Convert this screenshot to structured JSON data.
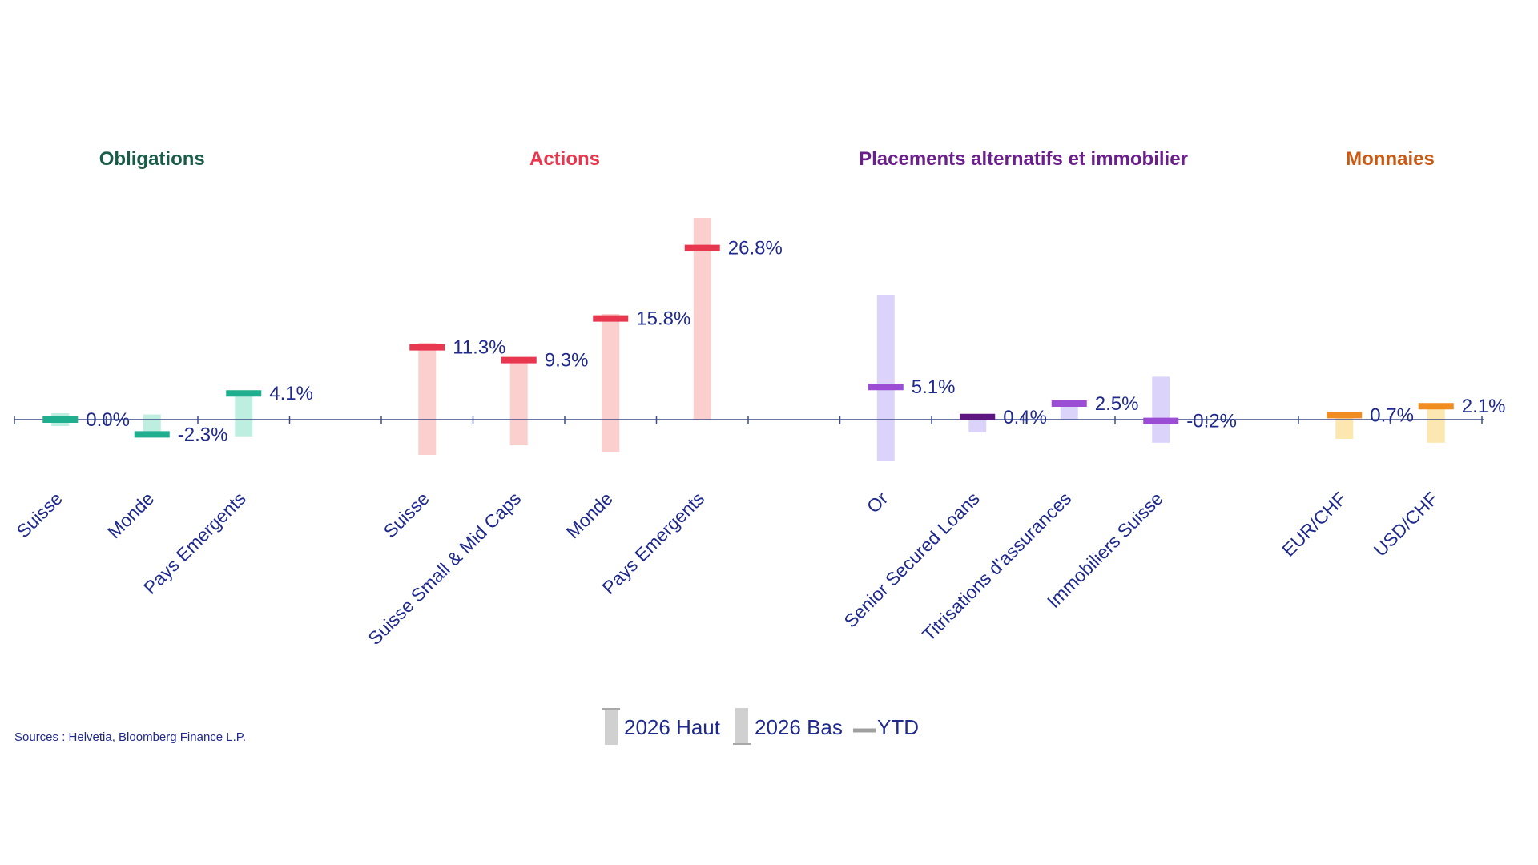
{
  "source": "Sources : Helvetia, Bloomberg Finance L.P.",
  "legend": [
    {
      "label": "2026 Haut",
      "icon": "high-range-bar"
    },
    {
      "label": "2026 Bas",
      "icon": "low-range-bar"
    },
    {
      "label": "YTD",
      "icon": "ytd-dash"
    }
  ],
  "chart_data": {
    "type": "bar",
    "title": "",
    "xlabel": "",
    "ylabel": "",
    "grid": false,
    "legend_position": "bottom",
    "ylim": [
      -10,
      32
    ],
    "groups": [
      {
        "name": "Obligations",
        "color": "#1a5c4a",
        "items": [
          {
            "category": "Suisse",
            "ytd": 0.0,
            "label": "0.0%",
            "high": 1.0,
            "low": -1.0,
            "ytd_color": "#1fae8e",
            "range_color": "#bdeee0"
          },
          {
            "category": "Monde",
            "ytd": -2.3,
            "label": "-2.3%",
            "high": 0.8,
            "low": -2.3,
            "ytd_color": "#1fae8e",
            "range_color": "#bdeee0"
          },
          {
            "category": "Pays Emergents",
            "ytd": 4.1,
            "label": "4.1%",
            "high": 4.1,
            "low": -2.6,
            "ytd_color": "#1fae8e",
            "range_color": "#bdeee0"
          }
        ]
      },
      {
        "name": "Actions",
        "color": "#e8384f",
        "items": [
          {
            "category": "Suisse",
            "ytd": 11.3,
            "label": "11.3%",
            "high": 12.0,
            "low": -5.5,
            "ytd_color": "#e8384f",
            "range_color": "#fccfcf"
          },
          {
            "category": "Suisse Small & Mid Caps",
            "ytd": 9.3,
            "label": "9.3%",
            "high": 9.3,
            "low": -4.0,
            "ytd_color": "#e8384f",
            "range_color": "#fccfcf"
          },
          {
            "category": "Monde",
            "ytd": 15.8,
            "label": "15.8%",
            "high": 16.5,
            "low": -5.0,
            "ytd_color": "#e8384f",
            "range_color": "#fccfcf"
          },
          {
            "category": "Pays Emergents",
            "ytd": 26.8,
            "label": "26.8%",
            "high": 31.5,
            "low": 0.0,
            "ytd_color": "#e8384f",
            "range_color": "#fccfcf"
          }
        ]
      },
      {
        "name": "Placements alternatifs et immobilier",
        "color": "#6b1f8c",
        "items": [
          {
            "category": "Or",
            "ytd": 5.1,
            "label": "5.1%",
            "high": 19.5,
            "low": -6.5,
            "ytd_color": "#9b4dd4",
            "range_color": "#dcd3fb"
          },
          {
            "category": "Senior Secured Loans",
            "ytd": 0.4,
            "label": "0.4%",
            "high": 0.4,
            "low": -2.0,
            "ytd_color": "#5c1780",
            "range_color": "#dcd3fb"
          },
          {
            "category": "Titrisations d'assurances",
            "ytd": 2.5,
            "label": "2.5%",
            "high": 2.5,
            "low": 0.0,
            "ytd_color": "#9b4dd4",
            "range_color": "#dcd3fb"
          },
          {
            "category": "Immobiliers Suisse",
            "ytd": -0.2,
            "label": "-0.2%",
            "high": 6.7,
            "low": -3.6,
            "ytd_color": "#9b4dd4",
            "range_color": "#dcd3fb"
          }
        ]
      },
      {
        "name": "Monnaies",
        "color": "#c85a14",
        "items": [
          {
            "category": "EUR/CHF",
            "ytd": 0.7,
            "label": "0.7%",
            "high": 0.7,
            "low": -3.0,
            "ytd_color": "#f08c20",
            "range_color": "#fde7b0"
          },
          {
            "category": "USD/CHF",
            "ytd": 2.1,
            "label": "2.1%",
            "high": 2.1,
            "low": -3.6,
            "ytd_color": "#f08c20",
            "range_color": "#fde7b0"
          }
        ]
      }
    ]
  }
}
